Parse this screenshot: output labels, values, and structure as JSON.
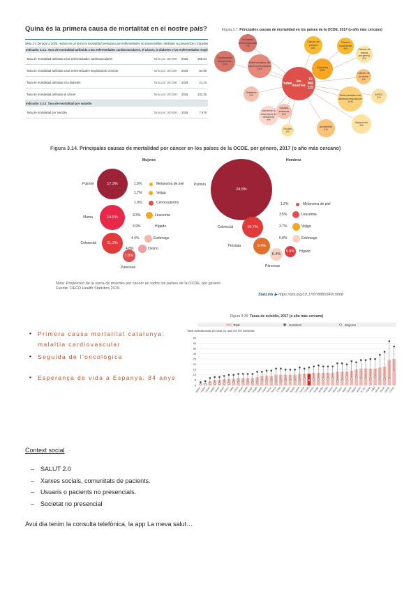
{
  "heading": "Quina és la primera causa de mortalitat en el nostre país?",
  "table": {
    "meta": "Meta 3.4 De aquí a 2030, reducir en un tercio la mortalidad prematura por enfermedades no transmisibles mediante su prevención y tratamiento",
    "indicator1": "Indicador 3.4.1. Tasa de mortalidad atribuida a las enfermedades cardiovasculares, el cáncer, la diabetes o las enfermedades respiratorias crónicas",
    "rows1": [
      {
        "label": "Tasa de mortalidad atribuida a las enfermedades cardiovasculares",
        "unit": "Tanto por 100.000",
        "year": "2018",
        "value": "258.64"
      },
      {
        "label": "Tasa de mortalidad atribuida a las enfermedades respiratorias crónicas",
        "unit": "Tanto por 100.000",
        "year": "2018",
        "value": "84.99"
      },
      {
        "label": "Tasa de mortalidad atribuida a la diabetes",
        "unit": "Tanto por 100.000",
        "year": "2018",
        "value": "21.23"
      },
      {
        "label": "Tasa de mortalidad atribuida al cáncer",
        "unit": "Tanto por 100.000",
        "year": "2018",
        "value": "232.25"
      }
    ],
    "indicator2": "Indicador 3.4.2. Tasa de mortalidad por suicidio",
    "rows2": [
      {
        "label": "Tasa de mortalidad por suicidio",
        "unit": "Tanto por 100.000",
        "year": "2018",
        "value": "7.578"
      }
    ]
  },
  "fig37": {
    "caption_num": "Figura 3.7.",
    "caption": "Principales causas de mortalidad en los países de la OCDE, 2017 (o año más cercano)",
    "center": {
      "line1": "Todas",
      "line2": "las muertes",
      "line3": "10 866 115"
    },
    "bubbles": [
      {
        "name": "Accidente cerebrovascular",
        "pct": "7%"
      },
      {
        "name": "Cardiopatías isquémicas",
        "pct": "11%"
      },
      {
        "name": "Enfermedades del sistema circulatorio",
        "pct": "31%"
      },
      {
        "name": "Diabetes",
        "pct": "2%"
      },
      {
        "name": "Alzheimer y otras tipos de demencia",
        "pct": "9%"
      },
      {
        "name": "Causas externas",
        "pct": "6%"
      },
      {
        "name": "Suicidio",
        "pct": "1%"
      },
      {
        "name": "Accidentes",
        "pct": "4%"
      },
      {
        "name": "Neumonía",
        "pct": "3%"
      },
      {
        "name": "EPOC",
        "pct": "4%"
      },
      {
        "name": "Enfermedades del sistema respiratorio",
        "pct": "10%"
      },
      {
        "name": "Cáncer de próstata",
        "pct": "1%"
      },
      {
        "name": "Cáncer de mama (mujeres)",
        "pct": "2%"
      },
      {
        "name": "Cáncer colorrectal",
        "pct": "3%"
      },
      {
        "name": "Cáncer de pulmón",
        "pct": "6%"
      },
      {
        "name": "Cánceres",
        "pct": "25%"
      }
    ]
  },
  "fig314": {
    "caption_num": "Figura 3.14.",
    "caption": "Principales causas de mortalidad por cáncer en los países de la OCDE, por género, 2017 (o año más cercano)",
    "women_title": "Mujeres",
    "men_title": "Hombres",
    "women": [
      {
        "name": "Pulmón",
        "pct": "17.3%"
      },
      {
        "name": "Mama",
        "pct": "14.5%"
      },
      {
        "name": "Colorectal",
        "pct": "11.3%"
      },
      {
        "name": "Páncreas",
        "pct": "7.8%"
      },
      {
        "name": "Melanoma de piel",
        "pct": "1.0%"
      },
      {
        "name": "Vejiga",
        "pct": "1.7%"
      },
      {
        "name": "Cervicouterino",
        "pct": "1.9%"
      },
      {
        "name": "Leucemia",
        "pct": "3.3%"
      },
      {
        "name": "Hígado",
        "pct": "3.9%"
      },
      {
        "name": "Estómago",
        "pct": "4.4%"
      },
      {
        "name": "Ovario",
        "pct": "4.8%"
      }
    ],
    "men": [
      {
        "name": "Pulmón",
        "pct": "24.8%"
      },
      {
        "name": "Colorectal",
        "pct": "10.7%"
      },
      {
        "name": "Próstata",
        "pct": "9.4%"
      },
      {
        "name": "Páncreas",
        "pct": "6.4%"
      },
      {
        "name": "Hígado",
        "pct": "5.9%"
      },
      {
        "name": "Melanoma de piel",
        "pct": "1.2%"
      },
      {
        "name": "Leucemia",
        "pct": "3.5%"
      },
      {
        "name": "Vejiga",
        "pct": "3.7%"
      },
      {
        "name": "Estómago",
        "pct": "5.8%"
      }
    ],
    "note": "Nota: Proporción de la suma de muertes por cáncer en todos los países de la OCDE, por género.",
    "source": "Fuente: OECD Health Statistics 2019.",
    "statlink": "StatLink",
    "doi": "https://doi.org/10.1787/888934015068"
  },
  "fig320": {
    "caption_num": "Figura 3.20.",
    "caption": "Tasas de suicidio, 2017 (o año más cercano)",
    "legend": [
      "Total",
      "Hombres",
      "Mujeres"
    ],
    "ylabel": "Tasas estandarizadas por edad por cada 100 000 habitantes",
    "yticks": [
      "0",
      "5",
      "10",
      "15",
      "20",
      "25",
      "30",
      "35",
      "40",
      "45"
    ]
  },
  "chart_data": {
    "type": "bar",
    "title": "Tasas de suicidio, 2017 (o año más cercano)",
    "ylabel": "Tasas estandarizadas por edad por cada 100 000 habitantes",
    "ylim": [
      0,
      45
    ],
    "categories": [
      "Sudáfrica",
      "Turquía",
      "Grecia",
      "Colombia",
      "Israel",
      "Brasil",
      "México",
      "Italia",
      "Costa Rica",
      "Reino Unido",
      "España",
      "Luxemburgo",
      "Portugal",
      "Noruega",
      "Alemania",
      "Dinamarca",
      "República Eslovaca",
      "Chile",
      "Canadá",
      "Países Bajos",
      "Irlanda",
      "Austria",
      "Suecia",
      "OCDE36",
      "Francia",
      "Finlandia",
      "Islandia",
      "Nueva Zelanda",
      "Suiza",
      "Polonia",
      "República Checa",
      "Japón",
      "Estonia",
      "Bélgica",
      "Eslovenia",
      "EE.UU.",
      "Hungría",
      "India",
      "Letonia",
      "Federación de Rusia",
      "Lituania",
      "Corea"
    ],
    "series": [
      {
        "name": "Total",
        "values": [
          1,
          2,
          4,
          5,
          5,
          6,
          6,
          6,
          7,
          7,
          7,
          7,
          8,
          9,
          9,
          9,
          10,
          10,
          10,
          10,
          10,
          11,
          11,
          11,
          12,
          12,
          12,
          12,
          12,
          13,
          13,
          13,
          14,
          15,
          16,
          16,
          16,
          16,
          17,
          18,
          24,
          25
        ]
      },
      {
        "name": "Hombres",
        "values": [
          3,
          4,
          7,
          8,
          8,
          9,
          10,
          10,
          11,
          11,
          11,
          11,
          13,
          13,
          14,
          14,
          16,
          16,
          15,
          15,
          15,
          17,
          16,
          17,
          18,
          19,
          18,
          18,
          18,
          21,
          21,
          20,
          23,
          22,
          24,
          24,
          25,
          25,
          29,
          32,
          42,
          37
        ]
      },
      {
        "name": "Mujeres",
        "values": [
          1,
          1,
          2,
          2,
          2,
          2,
          2,
          3,
          3,
          3,
          3,
          3,
          3,
          5,
          4,
          5,
          4,
          4,
          5,
          5,
          5,
          5,
          6,
          5,
          6,
          6,
          6,
          6,
          7,
          4,
          5,
          8,
          6,
          8,
          7,
          7,
          6,
          8,
          6,
          6,
          7,
          15
        ]
      }
    ]
  },
  "bullets": [
    "Primera causa mortalitat catalunya:",
    "malaltia cardiovascular",
    "Seguida de l'oncològica",
    "Esperança de vida a Espanya: 84 anys"
  ],
  "context": {
    "title": "Context social",
    "items": [
      "SALUT 2.0",
      "Xarxes socials, comunitats de pacients.",
      "Usuaris o pacients no presencials.",
      "Societat no presencial"
    ],
    "closing": "Avui dia tenim la consulta telefònica, la app La meva salut…"
  },
  "colors": {
    "accent": "#c0502a",
    "cancer_dark": "#9b2335",
    "cancer_red": "#e03a3a",
    "total_bar": "#f0b8b0",
    "orange_bubble": "#f6a623",
    "salmon_bubble": "#e58a7a"
  }
}
